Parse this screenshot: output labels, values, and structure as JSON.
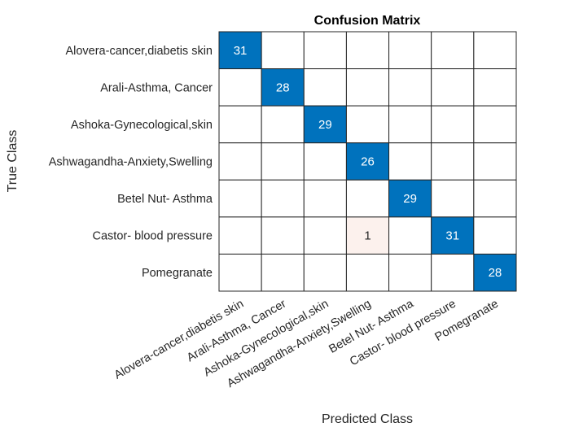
{
  "chart_data": {
    "type": "heatmap",
    "title": "Confusion Matrix",
    "xlabel": "Predicted Class",
    "ylabel": "True Class",
    "classes": [
      "Alovera-cancer,diabetis skin",
      "Arali-Asthma, Cancer",
      "Ashoka-Gynecological,skin",
      "Ashwagandha-Anxiety,Swelling",
      "Betel Nut- Asthma",
      "Castor- blood pressure",
      "Pomegranate"
    ],
    "matrix": [
      [
        31,
        0,
        0,
        0,
        0,
        0,
        0
      ],
      [
        0,
        28,
        0,
        0,
        0,
        0,
        0
      ],
      [
        0,
        0,
        29,
        0,
        0,
        0,
        0
      ],
      [
        0,
        0,
        0,
        26,
        0,
        0,
        0
      ],
      [
        0,
        0,
        0,
        0,
        29,
        0,
        0
      ],
      [
        0,
        0,
        0,
        1,
        0,
        31,
        0
      ],
      [
        0,
        0,
        0,
        0,
        0,
        0,
        28
      ]
    ],
    "show_zero_values": false,
    "colors": {
      "diagonal": "#0072BD",
      "off_diagonal": "#D95319",
      "empty": "#FFFFFF",
      "diagonal_text": "#FFFFFF",
      "off_diagonal_text": "#262626"
    }
  }
}
